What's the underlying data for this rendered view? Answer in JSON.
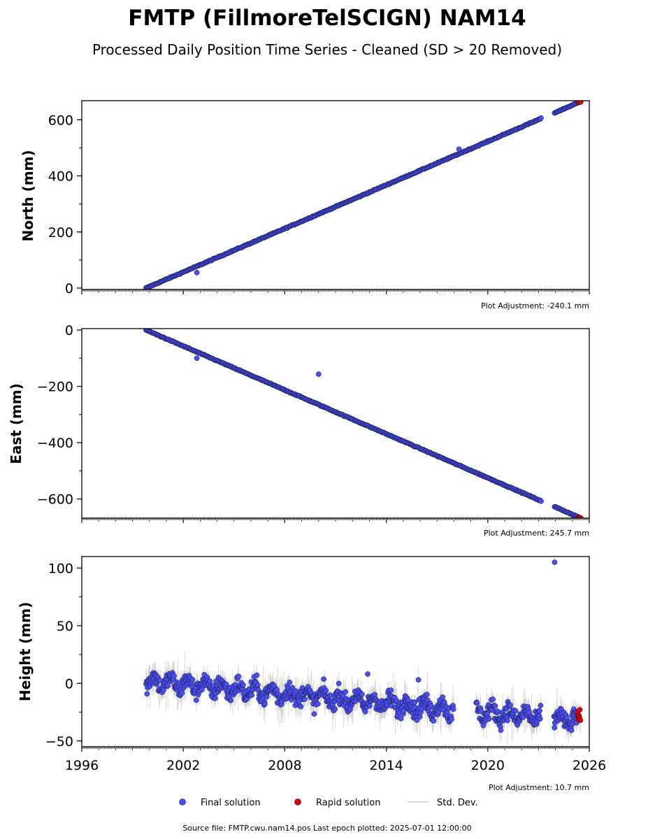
{
  "figure": {
    "title": "FMTP (FillmoreTelSCIGN) NAM14",
    "subtitle": "Processed Daily Position Time Series - Cleaned (SD > 20 Removed)",
    "footer": "Source file: FMTP.cwu.nam14.pos  Last epoch plotted: 2025-07-01 12:00:00",
    "legend": [
      {
        "label": "Final solution",
        "color": "#4b4ef0",
        "marker": "circle"
      },
      {
        "label": "Rapid solution",
        "color": "#e00000",
        "marker": "circle"
      },
      {
        "label": "Std. Dev.",
        "color": "#cccccc",
        "marker": "line"
      }
    ],
    "colors": {
      "final": "#4b4ef0",
      "rapid": "#e00000",
      "edge": "#111133",
      "stddev": "#b0b0b0"
    }
  },
  "chart_data": [
    {
      "type": "scatter",
      "ylabel": "North (mm)",
      "adjustment": "Plot Adjustment: -240.1 mm",
      "xlim": [
        1996,
        2026
      ],
      "ylim": [
        -5,
        668
      ],
      "yticks": [
        0,
        200,
        400,
        600
      ],
      "ytick_labels": [
        "0",
        "200",
        "400",
        "600"
      ],
      "trend": {
        "start": [
          1999.8,
          0
        ],
        "end": [
          2025.5,
          665
        ]
      },
      "gaps": [
        [
          2023.15,
          2023.9
        ]
      ],
      "rapid_from": 2025.3,
      "outliers": [
        {
          "x": 2002.8,
          "y": 55
        },
        {
          "x": 2018.3,
          "y": 495
        }
      ],
      "noise": 3
    },
    {
      "type": "scatter",
      "ylabel": "East (mm)",
      "adjustment": "Plot Adjustment: 245.7 mm",
      "xlim": [
        1996,
        2026
      ],
      "ylim": [
        -668,
        5
      ],
      "yticks": [
        0,
        -200,
        -400,
        -600
      ],
      "ytick_labels": [
        "0",
        "−200",
        "−400",
        "−600"
      ],
      "trend": {
        "start": [
          1999.8,
          0
        ],
        "end": [
          2025.5,
          -668
        ]
      },
      "gaps": [
        [
          2023.15,
          2023.9
        ]
      ],
      "rapid_from": 2025.3,
      "outliers": [
        {
          "x": 2002.8,
          "y": -100
        },
        {
          "x": 2010.0,
          "y": -157
        }
      ],
      "noise": 3
    },
    {
      "type": "scatter",
      "ylabel": "Height (mm)",
      "adjustment": "Plot Adjustment: 10.7 mm",
      "xlim": [
        1996,
        2026
      ],
      "ylim": [
        -55,
        110
      ],
      "yticks": [
        100,
        50,
        0,
        -50
      ],
      "ytick_labels": [
        "100",
        "50",
        "0",
        "−50"
      ],
      "xticks": [
        1996,
        2002,
        2008,
        2014,
        2020,
        2026
      ],
      "xtick_labels": [
        "1996",
        "2002",
        "2008",
        "2014",
        "2020",
        "2026"
      ],
      "trend": {
        "start": [
          1999.8,
          2
        ],
        "end": [
          2025.5,
          -33
        ]
      },
      "gaps": [
        [
          2018.0,
          2019.3
        ],
        [
          2023.15,
          2023.9
        ]
      ],
      "rapid_from": 2025.3,
      "outliers": [
        {
          "x": 2023.95,
          "y": 105
        },
        {
          "x": 2015.9,
          "y": 3
        },
        {
          "x": 2012.9,
          "y": 8
        }
      ],
      "noise": 9
    }
  ]
}
